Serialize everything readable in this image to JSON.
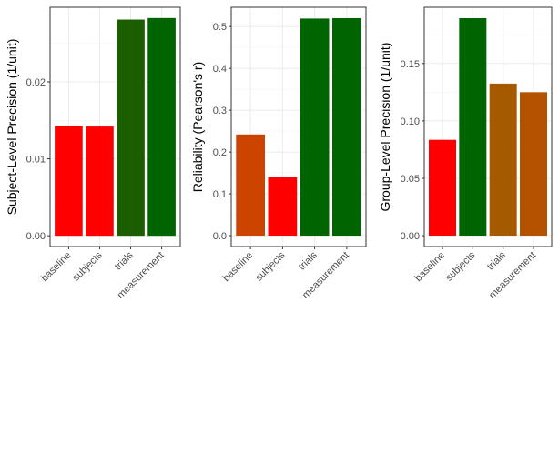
{
  "chart_data": [
    {
      "type": "bar",
      "ylabel": "Subject-Level Precision (1/unit)",
      "categories": [
        "baseline",
        "subjects",
        "trials",
        "measurement"
      ],
      "values": [
        0.0143,
        0.0142,
        0.0281,
        0.0283
      ],
      "colors": [
        "#ff0000",
        "#ff0000",
        "#1a5e00",
        "#006400"
      ],
      "yticks": [
        0.0,
        0.01,
        0.02
      ],
      "ytick_labels": [
        "0.00",
        "0.01",
        "0.02"
      ],
      "ylim": [
        -0.0014,
        0.0297
      ],
      "grid": true
    },
    {
      "type": "bar",
      "ylabel": "Reliability (Pearson's r)",
      "categories": [
        "baseline",
        "subjects",
        "trials",
        "measurement"
      ],
      "values": [
        0.242,
        0.14,
        0.519,
        0.52
      ],
      "colors": [
        "#cc4400",
        "#ff0000",
        "#006400",
        "#006400"
      ],
      "yticks": [
        0.0,
        0.1,
        0.2,
        0.3,
        0.4,
        0.5
      ],
      "ytick_labels": [
        "0.0",
        "0.1",
        "0.2",
        "0.3",
        "0.4",
        "0.5"
      ],
      "ylim": [
        -0.026,
        0.546
      ],
      "grid": true
    },
    {
      "type": "bar",
      "ylabel": "Group-Level Precision (1/unit)",
      "categories": [
        "baseline",
        "subjects",
        "trials",
        "measurement"
      ],
      "values": [
        0.0835,
        0.1895,
        0.1325,
        0.125
      ],
      "colors": [
        "#ff0000",
        "#006400",
        "#a65a00",
        "#b55200"
      ],
      "yticks": [
        0.0,
        0.05,
        0.1,
        0.15
      ],
      "ytick_labels": [
        "0.00",
        "0.05",
        "0.10",
        "0.15"
      ],
      "ylim": [
        -0.0095,
        0.199
      ],
      "grid": true
    }
  ]
}
